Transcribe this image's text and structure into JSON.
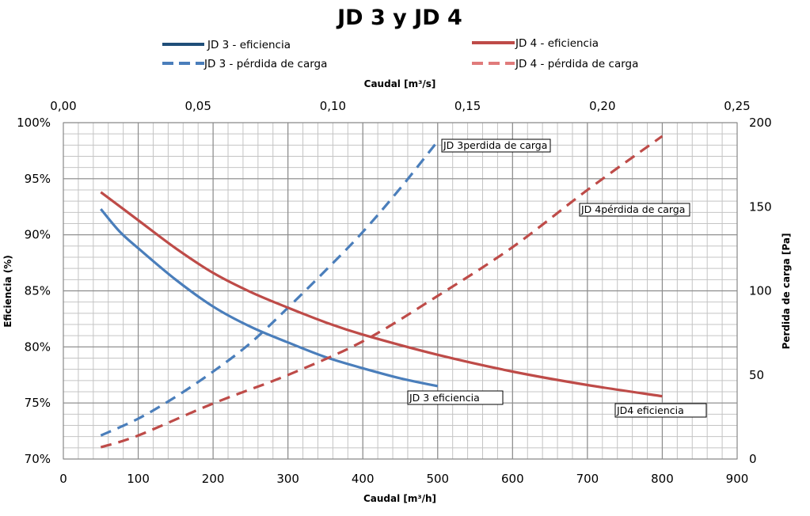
{
  "chart_data": {
    "type": "line",
    "title": "JD 3 y JD 4",
    "xlabel": "Caudal [m³/h]",
    "xlabel_top": "Caudal [m³/s]",
    "ylabel_left": "Eficiencia (%)",
    "ylabel_right": "Perdida de carga [Pa]",
    "xlim": [
      0,
      900
    ],
    "xlim_top": [
      0,
      0.25
    ],
    "ylim_left": [
      70,
      100
    ],
    "ylim_right": [
      0,
      200
    ],
    "x_ticks": [
      "0",
      "100",
      "200",
      "300",
      "400",
      "500",
      "600",
      "700",
      "800",
      "900"
    ],
    "x_top_ticks": [
      "0,00",
      "0,05",
      "0,10",
      "0,15",
      "0,20",
      "0,25"
    ],
    "y_left_ticks": [
      "70%",
      "75%",
      "80%",
      "85%",
      "90%",
      "95%",
      "100%"
    ],
    "y_right_ticks": [
      "0",
      "50",
      "100",
      "150",
      "200"
    ],
    "grid": true,
    "legend_position": "top",
    "series": [
      {
        "name": "JD 3 - eficiencia",
        "axis": "left",
        "color": "#4a7ebb",
        "dash": "solid",
        "x": [
          50,
          75,
          100,
          150,
          200,
          250,
          300,
          350,
          400,
          450,
          500
        ],
        "y": [
          92.3,
          90.3,
          88.8,
          86.0,
          83.6,
          81.8,
          80.4,
          79.1,
          78.1,
          77.2,
          76.5
        ]
      },
      {
        "name": "JD 3 - pérdida de carga",
        "axis": "right",
        "color": "#4a7ebb",
        "dash": "dashed",
        "x": [
          50,
          100,
          150,
          200,
          250,
          300,
          350,
          400,
          450,
          500
        ],
        "y": [
          14,
          24,
          37,
          52,
          69,
          90,
          112,
          135,
          161,
          189
        ]
      },
      {
        "name": "JD 4 - eficiencia",
        "axis": "left",
        "color": "#be4b48",
        "dash": "solid",
        "x": [
          50,
          100,
          150,
          200,
          250,
          300,
          350,
          400,
          500,
          600,
          700,
          800
        ],
        "y": [
          93.8,
          91.3,
          88.8,
          86.6,
          84.9,
          83.5,
          82.2,
          81.1,
          79.3,
          77.8,
          76.6,
          75.6
        ]
      },
      {
        "name": "JD 4 - pérdida de carga",
        "axis": "right",
        "color": "#be4b48",
        "dash": "dashed",
        "x": [
          50,
          100,
          200,
          300,
          400,
          500,
          600,
          700,
          800
        ],
        "y": [
          7,
          14,
          33,
          50,
          70,
          97,
          126,
          160,
          192
        ]
      }
    ],
    "annotations": [
      "JD 3perdida de carga",
      "JD 4pérdida de carga",
      "JD 3 eficiencia",
      "JD4 eficiencia"
    ]
  }
}
